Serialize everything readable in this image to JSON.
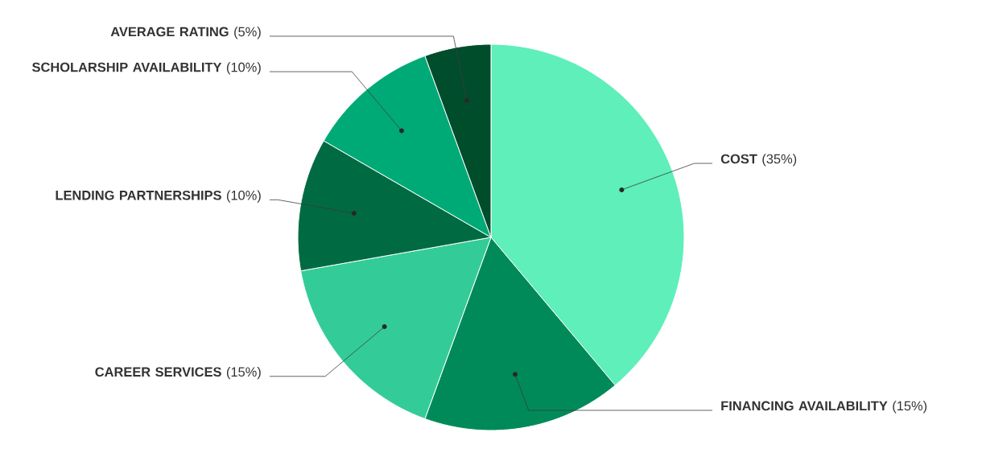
{
  "chart_data": {
    "type": "pie",
    "categories": [
      "**COST** (35%)",
      "**FINANCING AVAILABILITY** (15%)",
      "**CAREER SERVICES** (15%)",
      "**LENDING PARTNERSHIPS** (10%)",
      "**SCHOLARSHIP AVAILABILITY** (10%)",
      "**AVERAGE RATING** (5%)"
    ],
    "values": [
      35,
      15,
      15,
      10,
      10,
      5
    ],
    "colors": [
      "#5eefbb",
      "#008a5a",
      "#33cc99",
      "#006b42",
      "#00aa77",
      "#004d2c"
    ]
  }
}
